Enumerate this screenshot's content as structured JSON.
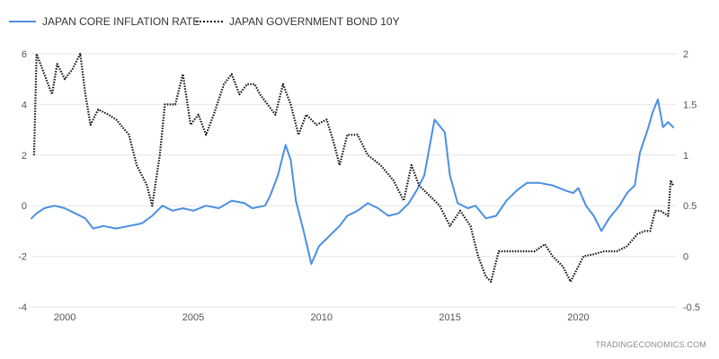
{
  "chart_data": {
    "type": "line",
    "watermark": "TRADINGECONOMICS.COM",
    "grid": "horizontal",
    "legend_position": "top-left",
    "x_axis": {
      "min": 1998.7,
      "max": 2023.8,
      "ticks": [
        "2000",
        "2005",
        "2010",
        "2015",
        "2020"
      ]
    },
    "y_left": {
      "min": -4,
      "max": 6,
      "ticks": [
        "-4",
        "-2",
        "0",
        "2",
        "4",
        "6"
      ]
    },
    "y_right": {
      "min": -0.5,
      "max": 2,
      "ticks": [
        "-0.5",
        "0",
        "0.5",
        "1",
        "1.5",
        "2"
      ]
    },
    "series": [
      {
        "name": "JAPAN CORE INFLATION RATE",
        "axis": "left",
        "color": "#4a90e2",
        "style": "solid",
        "points": [
          [
            1998.7,
            -0.5
          ],
          [
            1998.9,
            -0.3
          ],
          [
            1999.2,
            -0.1
          ],
          [
            1999.6,
            0.0
          ],
          [
            2000.0,
            -0.1
          ],
          [
            2000.4,
            -0.3
          ],
          [
            2000.8,
            -0.5
          ],
          [
            2001.1,
            -0.9
          ],
          [
            2001.5,
            -0.8
          ],
          [
            2002.0,
            -0.9
          ],
          [
            2002.5,
            -0.8
          ],
          [
            2003.0,
            -0.7
          ],
          [
            2003.4,
            -0.4
          ],
          [
            2003.8,
            0.0
          ],
          [
            2004.2,
            -0.2
          ],
          [
            2004.6,
            -0.1
          ],
          [
            2005.0,
            -0.2
          ],
          [
            2005.5,
            0.0
          ],
          [
            2006.0,
            -0.1
          ],
          [
            2006.5,
            0.2
          ],
          [
            2007.0,
            0.1
          ],
          [
            2007.3,
            -0.1
          ],
          [
            2007.8,
            0.0
          ],
          [
            2008.0,
            0.4
          ],
          [
            2008.3,
            1.2
          ],
          [
            2008.6,
            2.4
          ],
          [
            2008.8,
            1.8
          ],
          [
            2009.0,
            0.2
          ],
          [
            2009.3,
            -1.0
          ],
          [
            2009.6,
            -2.3
          ],
          [
            2009.9,
            -1.6
          ],
          [
            2010.3,
            -1.2
          ],
          [
            2010.7,
            -0.8
          ],
          [
            2011.0,
            -0.4
          ],
          [
            2011.4,
            -0.2
          ],
          [
            2011.8,
            0.1
          ],
          [
            2012.2,
            -0.1
          ],
          [
            2012.6,
            -0.4
          ],
          [
            2013.0,
            -0.3
          ],
          [
            2013.4,
            0.1
          ],
          [
            2013.7,
            0.6
          ],
          [
            2014.0,
            1.2
          ],
          [
            2014.4,
            3.4
          ],
          [
            2014.8,
            2.9
          ],
          [
            2015.0,
            1.2
          ],
          [
            2015.3,
            0.1
          ],
          [
            2015.7,
            -0.1
          ],
          [
            2016.0,
            0.0
          ],
          [
            2016.4,
            -0.5
          ],
          [
            2016.8,
            -0.4
          ],
          [
            2017.2,
            0.2
          ],
          [
            2017.6,
            0.6
          ],
          [
            2018.0,
            0.9
          ],
          [
            2018.5,
            0.9
          ],
          [
            2019.0,
            0.8
          ],
          [
            2019.5,
            0.6
          ],
          [
            2019.8,
            0.5
          ],
          [
            2020.0,
            0.7
          ],
          [
            2020.3,
            0.0
          ],
          [
            2020.6,
            -0.4
          ],
          [
            2020.9,
            -1.0
          ],
          [
            2021.2,
            -0.5
          ],
          [
            2021.6,
            0.0
          ],
          [
            2021.9,
            0.5
          ],
          [
            2022.2,
            0.8
          ],
          [
            2022.4,
            2.1
          ],
          [
            2022.7,
            3.0
          ],
          [
            2022.9,
            3.7
          ],
          [
            2023.1,
            4.2
          ],
          [
            2023.3,
            3.1
          ],
          [
            2023.5,
            3.3
          ],
          [
            2023.7,
            3.1
          ]
        ]
      },
      {
        "name": "JAPAN GOVERNMENT BOND 10Y",
        "axis": "right",
        "color": "#111111",
        "style": "dotted",
        "points": [
          [
            1998.8,
            1.0
          ],
          [
            1998.9,
            2.0
          ],
          [
            1999.2,
            1.8
          ],
          [
            1999.5,
            1.6
          ],
          [
            1999.7,
            1.9
          ],
          [
            2000.0,
            1.75
          ],
          [
            2000.3,
            1.85
          ],
          [
            2000.6,
            2.0
          ],
          [
            2000.8,
            1.6
          ],
          [
            2001.0,
            1.3
          ],
          [
            2001.3,
            1.45
          ],
          [
            2001.7,
            1.4
          ],
          [
            2002.0,
            1.35
          ],
          [
            2002.5,
            1.2
          ],
          [
            2002.8,
            0.9
          ],
          [
            2003.2,
            0.7
          ],
          [
            2003.4,
            0.5
          ],
          [
            2003.7,
            1.0
          ],
          [
            2003.9,
            1.5
          ],
          [
            2004.3,
            1.5
          ],
          [
            2004.6,
            1.8
          ],
          [
            2004.9,
            1.3
          ],
          [
            2005.2,
            1.4
          ],
          [
            2005.5,
            1.2
          ],
          [
            2005.8,
            1.4
          ],
          [
            2006.2,
            1.7
          ],
          [
            2006.5,
            1.8
          ],
          [
            2006.8,
            1.6
          ],
          [
            2007.1,
            1.7
          ],
          [
            2007.4,
            1.7
          ],
          [
            2007.6,
            1.6
          ],
          [
            2007.9,
            1.5
          ],
          [
            2008.2,
            1.4
          ],
          [
            2008.5,
            1.7
          ],
          [
            2008.8,
            1.5
          ],
          [
            2009.1,
            1.2
          ],
          [
            2009.4,
            1.4
          ],
          [
            2009.8,
            1.3
          ],
          [
            2010.2,
            1.35
          ],
          [
            2010.5,
            1.1
          ],
          [
            2010.7,
            0.9
          ],
          [
            2011.0,
            1.2
          ],
          [
            2011.4,
            1.2
          ],
          [
            2011.8,
            1.0
          ],
          [
            2012.3,
            0.9
          ],
          [
            2012.8,
            0.75
          ],
          [
            2013.2,
            0.55
          ],
          [
            2013.5,
            0.9
          ],
          [
            2013.8,
            0.7
          ],
          [
            2014.2,
            0.6
          ],
          [
            2014.6,
            0.5
          ],
          [
            2015.0,
            0.3
          ],
          [
            2015.4,
            0.45
          ],
          [
            2015.8,
            0.3
          ],
          [
            2016.1,
            0.0
          ],
          [
            2016.4,
            -0.2
          ],
          [
            2016.6,
            -0.25
          ],
          [
            2016.9,
            0.05
          ],
          [
            2017.3,
            0.05
          ],
          [
            2017.8,
            0.05
          ],
          [
            2018.3,
            0.05
          ],
          [
            2018.7,
            0.12
          ],
          [
            2019.0,
            0.0
          ],
          [
            2019.4,
            -0.1
          ],
          [
            2019.7,
            -0.25
          ],
          [
            2019.9,
            -0.15
          ],
          [
            2020.2,
            0.0
          ],
          [
            2020.6,
            0.02
          ],
          [
            2021.0,
            0.05
          ],
          [
            2021.5,
            0.05
          ],
          [
            2021.9,
            0.1
          ],
          [
            2022.3,
            0.22
          ],
          [
            2022.6,
            0.25
          ],
          [
            2022.8,
            0.25
          ],
          [
            2023.0,
            0.45
          ],
          [
            2023.2,
            0.45
          ],
          [
            2023.5,
            0.4
          ],
          [
            2023.6,
            0.75
          ],
          [
            2023.7,
            0.7
          ]
        ]
      }
    ]
  }
}
